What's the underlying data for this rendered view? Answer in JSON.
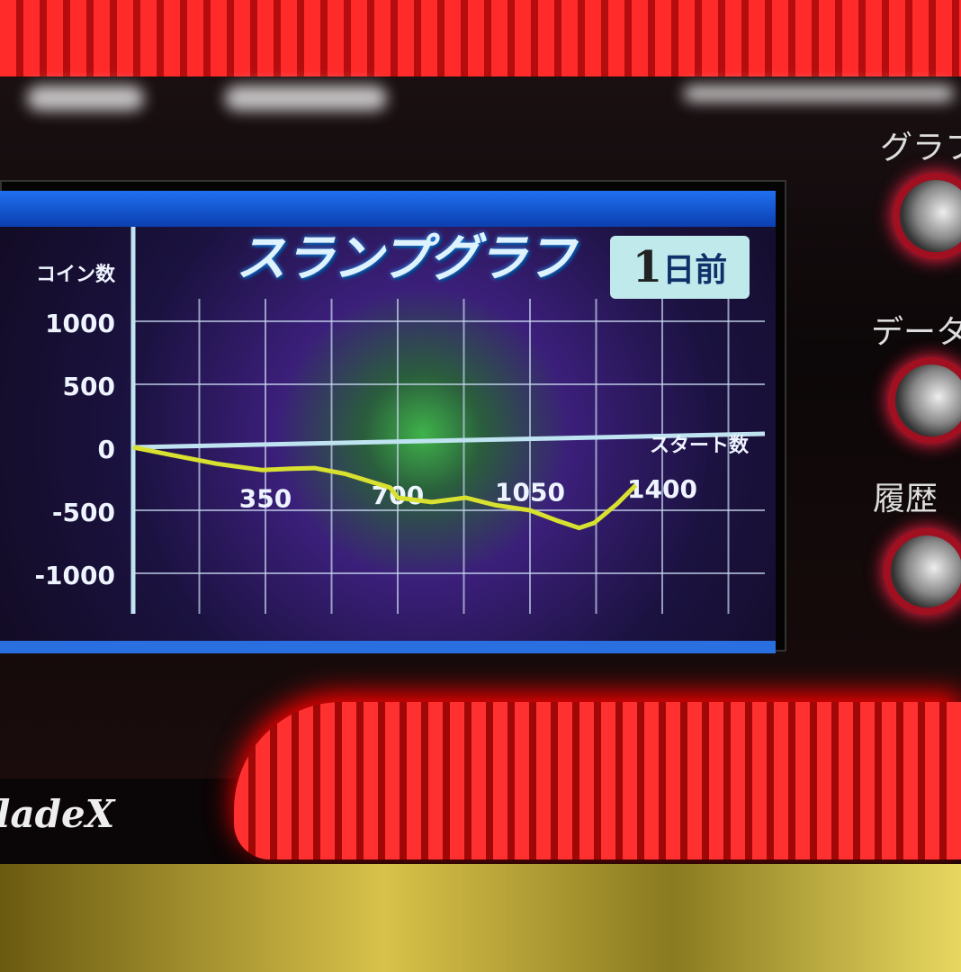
{
  "screen": {
    "title": "スランプグラフ",
    "day_number": "1",
    "day_suffix": "日前"
  },
  "side_buttons": [
    {
      "label": "グラフ",
      "icon": "knob-icon"
    },
    {
      "label": "データ",
      "icon": "knob-icon"
    },
    {
      "label": "履歴",
      "icon": "knob-icon"
    }
  ],
  "logo": "BladeX",
  "colors": {
    "line": "#d8e030",
    "axis": "#bfe3f0",
    "frame": "#2a6fe0",
    "led": "#ff2a2a"
  },
  "chart_data": {
    "type": "line",
    "title": "スランプグラフ",
    "ylabel": "コイン数",
    "xlabel": "スタート数",
    "xlim": [
      0,
      1750
    ],
    "ylim": [
      -1100,
      1100
    ],
    "x_ticks": [
      350,
      700,
      1050,
      1400
    ],
    "y_ticks": [
      1000,
      500,
      0,
      -500,
      -1000
    ],
    "grid": true,
    "x": [
      0,
      100,
      220,
      340,
      420,
      480,
      560,
      680,
      700,
      790,
      880,
      960,
      1050,
      1120,
      1180,
      1220,
      1280,
      1330
    ],
    "values": [
      0,
      -60,
      -130,
      -180,
      -170,
      -165,
      -210,
      -320,
      -400,
      -435,
      -400,
      -460,
      -500,
      -580,
      -640,
      -600,
      -450,
      -300
    ]
  }
}
